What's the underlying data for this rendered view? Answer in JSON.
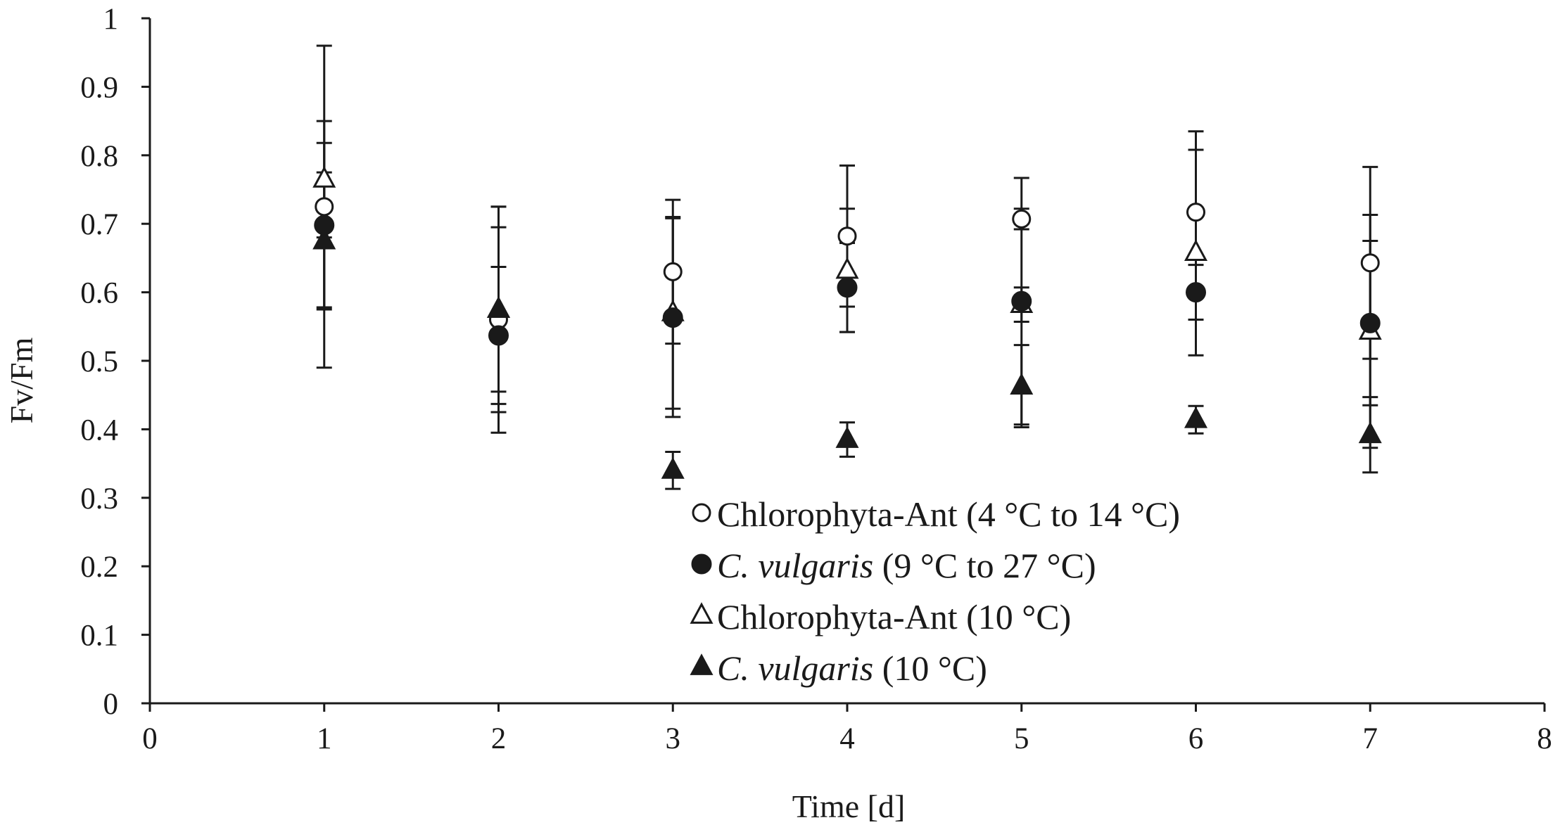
{
  "chart_data": {
    "type": "scatter",
    "xlabel": "Time [d]",
    "ylabel": "Fv/Fm",
    "xlim": [
      0,
      8
    ],
    "ylim": [
      0,
      1
    ],
    "x_ticks": [
      "0",
      "1",
      "2",
      "3",
      "4",
      "5",
      "6",
      "7",
      "8"
    ],
    "y_ticks": [
      "0",
      "0.1",
      "0.2",
      "0.3",
      "0.4",
      "0.5",
      "0.6",
      "0.7",
      "0.8",
      "0.9",
      "1"
    ],
    "grid": false,
    "legend_position": "bottom-center",
    "series": [
      {
        "name": "Chlorophyta-Ant (4 °C to 14 °C)",
        "legend_parts": [
          {
            "text": "Chlorophyta-Ant",
            "italic": false
          },
          {
            "text": " (4 °C to 14 °C)",
            "italic": false
          }
        ],
        "marker": "circle-open",
        "x": [
          1,
          2,
          3,
          4,
          5,
          6,
          7
        ],
        "y": [
          0.725,
          0.56,
          0.63,
          0.682,
          0.707,
          0.717,
          0.643
        ],
        "err": [
          0.235,
          0.165,
          0.105,
          0.103,
          0.015,
          0.118,
          0.14
        ]
      },
      {
        "name": "C. vulgaris (9 °C to 27 °C)",
        "legend_parts": [
          {
            "text": "C. vulgaris",
            "italic": true
          },
          {
            "text": " (9 °C to 27 °C)",
            "italic": false
          }
        ],
        "marker": "circle-filled",
        "x": [
          1,
          2,
          3,
          4,
          5,
          6,
          7
        ],
        "y": [
          0.698,
          0.537,
          0.563,
          0.607,
          0.587,
          0.6,
          0.555
        ],
        "err": [
          0.12,
          0.1,
          0.145,
          0.065,
          0.18,
          0.04,
          0.12
        ]
      },
      {
        "name": "Chlorophyta-Ant (10 °C)",
        "legend_parts": [
          {
            "text": "Chlorophyta-Ant",
            "italic": false
          },
          {
            "text": " (10 °C)",
            "italic": false
          }
        ],
        "marker": "triangle-open",
        "x": [
          1,
          2,
          3,
          4,
          5,
          6,
          7
        ],
        "y": [
          0.765,
          0.575,
          0.57,
          0.632,
          0.582,
          0.658,
          0.543
        ],
        "err": [
          0.085,
          0.15,
          0.14,
          0.09,
          0.025,
          0.15,
          0.17
        ]
      },
      {
        "name": "C. vulgaris (10 °C)",
        "legend_parts": [
          {
            "text": "C. vulgaris",
            "italic": true
          },
          {
            "text": " (10 °C)",
            "italic": false
          }
        ],
        "marker": "triangle-filled",
        "x": [
          1,
          2,
          3,
          4,
          5,
          6,
          7
        ],
        "y": [
          0.675,
          0.575,
          0.34,
          0.385,
          0.463,
          0.414,
          0.392
        ],
        "err": [
          0.1,
          0.12,
          0.027,
          0.025,
          0.06,
          0.02,
          0.055
        ]
      }
    ]
  }
}
